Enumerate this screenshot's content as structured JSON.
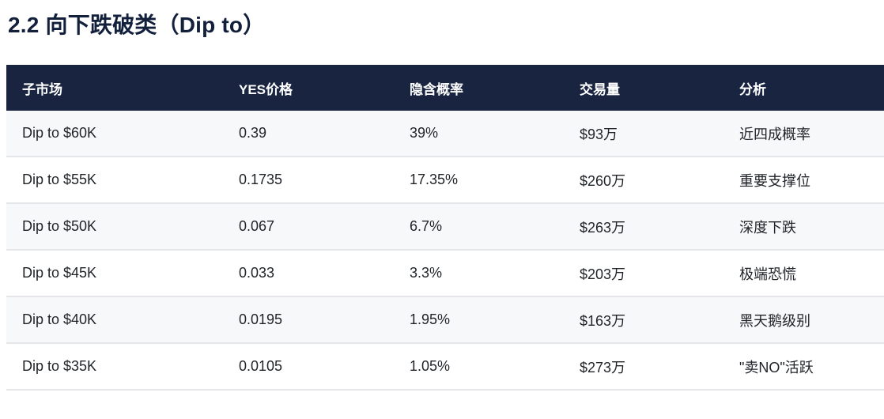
{
  "page": {
    "title": "2.2 向下跌破类（Dip to）"
  },
  "table": {
    "columns": [
      "子市场",
      "YES价格",
      "隐含概率",
      "交易量",
      "分析"
    ],
    "rows": [
      [
        "Dip to $60K",
        "0.39",
        "39%",
        "$93万",
        "近四成概率"
      ],
      [
        "Dip to $55K",
        "0.1735",
        "17.35%",
        "$260万",
        "重要支撑位"
      ],
      [
        "Dip to $50K",
        "0.067",
        "6.7%",
        "$263万",
        "深度下跌"
      ],
      [
        "Dip to $45K",
        "0.033",
        "3.3%",
        "$203万",
        "极端恐慌"
      ],
      [
        "Dip to $40K",
        "0.0195",
        "1.95%",
        "$163万",
        "黑天鹅级别"
      ],
      [
        "Dip to $35K",
        "0.0105",
        "1.05%",
        "$273万",
        "\"卖NO\"活跃"
      ]
    ]
  },
  "colors": {
    "header_bg": "#182440",
    "header_text": "#ffffff",
    "row_alt_bg": "#f7f8fa",
    "row_border": "#e5e6e9",
    "title_text": "#12203c",
    "body_text": "#1f2328"
  }
}
